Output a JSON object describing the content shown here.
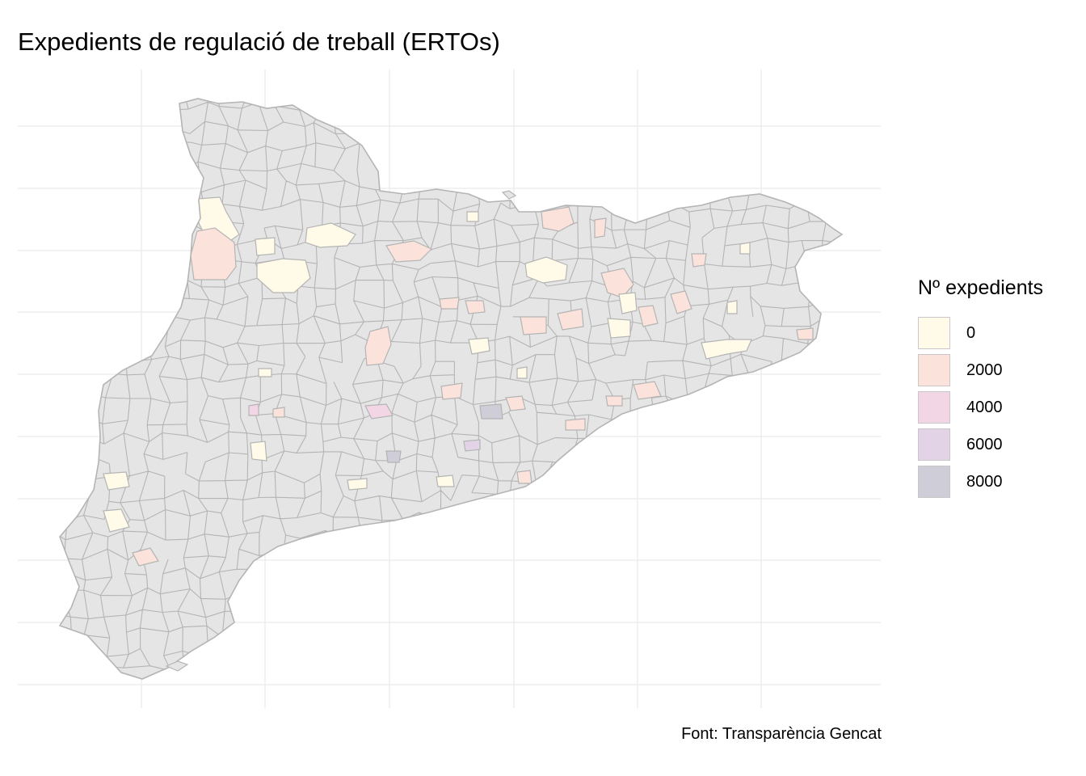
{
  "title": "Expedients de regulació de treball (ERTOs)",
  "caption": "Font: Transparència Gencat",
  "legend": {
    "title": "Nº expedients",
    "items": [
      {
        "label": "0",
        "color": "#fffbe8"
      },
      {
        "label": "2000",
        "color": "#fbe3dc"
      },
      {
        "label": "4000",
        "color": "#f3d6e5"
      },
      {
        "label": "6000",
        "color": "#e2d4e6"
      },
      {
        "label": "8000",
        "color": "#cfcdd7"
      }
    ]
  },
  "colors": {
    "base_fill": "#e5e5e5",
    "border": "#b4b4b4",
    "grid": "#ebebeb",
    "background": "#ffffff"
  }
}
